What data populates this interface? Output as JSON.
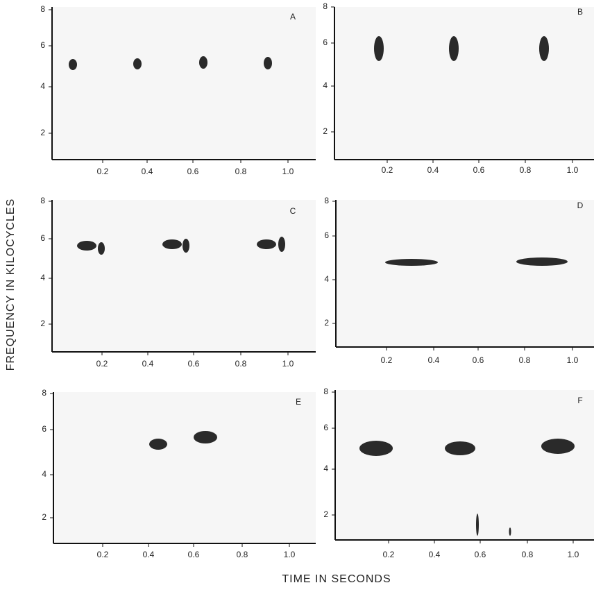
{
  "y_axis_label": "FREQUENCY IN KILOCYCLES",
  "x_axis_label": "TIME IN SECONDS",
  "panels": [
    {
      "label": "A",
      "yticks": [
        "8",
        "6",
        "4",
        "2"
      ],
      "xticks": [
        "0.2",
        "0.4",
        "0.6",
        "0.8",
        "1.0"
      ]
    },
    {
      "label": "B",
      "yticks": [
        "8",
        "6",
        "4",
        "2"
      ],
      "xticks": [
        "0.2",
        "0.4",
        "0.6",
        "0.8",
        "1.0"
      ]
    },
    {
      "label": "C",
      "yticks": [
        "8",
        "6",
        "4",
        "2"
      ],
      "xticks": [
        "0.2",
        "0.4",
        "0.6",
        "0.8",
        "1.0"
      ]
    },
    {
      "label": "D",
      "yticks": [
        "8",
        "6",
        "4",
        "2"
      ],
      "xticks": [
        "0.2",
        "0.4",
        "0.6",
        "0.8",
        "1.0"
      ]
    },
    {
      "label": "E",
      "yticks": [
        "8",
        "6",
        "4",
        "2"
      ],
      "xticks": [
        "0.2",
        "0.4",
        "0.6",
        "0.8",
        "1.0"
      ]
    },
    {
      "label": "F",
      "yticks": [
        "8",
        "6",
        "4",
        "2"
      ],
      "xticks": [
        "0.2",
        "0.4",
        "0.6",
        "0.8",
        "1.0"
      ]
    }
  ]
}
